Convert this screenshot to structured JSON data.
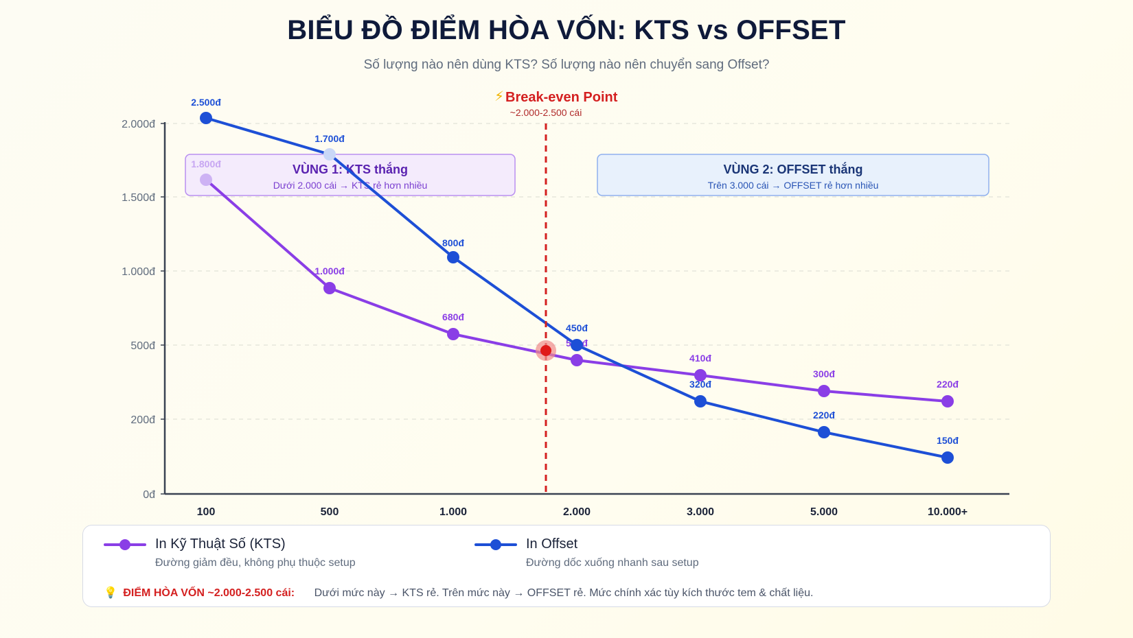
{
  "header": {
    "title": "BIỂU ĐỒ ĐIỂM HÒA VỐN: KTS vs OFFSET",
    "subtitle": "Số lượng nào nên dùng KTS? Số lượng nào nên chuyển sang Offset?"
  },
  "chart_data": {
    "type": "line",
    "categories": [
      "100",
      "500",
      "1.000",
      "2.000",
      "3.000",
      "5.000",
      "10.000+"
    ],
    "y_ticks": [
      "0đ",
      "200đ",
      "500đ",
      "1.000đ",
      "1.500đ",
      "2.000đ"
    ],
    "grid": true,
    "series": [
      {
        "name": "In Kỹ Thuật Số (KTS)",
        "color": "#8a3ee6",
        "labels": [
          "1.800đ",
          "1.000đ",
          "680đ",
          "500đ",
          "410đ",
          "300đ",
          "220đ"
        ]
      },
      {
        "name": "In Offset",
        "color": "#1d4fd6",
        "labels": [
          "2.500đ",
          "1.700đ",
          "800đ",
          "450đ",
          "320đ",
          "220đ",
          "150đ"
        ]
      }
    ],
    "break_even": {
      "label": "Break-even Point",
      "icon": "⚡",
      "sublabel": "~2.000-2.500 cái",
      "color": "#d42020"
    },
    "zones": [
      {
        "title": "VÙNG 1: KTS thắng",
        "desc": "Dưới 2.000 cái → KTS rẻ hơn nhiều"
      },
      {
        "title": "VÙNG 2: OFFSET thắng",
        "desc": "Trên 3.000 cái → OFFSET rẻ hơn nhiều"
      }
    ]
  },
  "legend": {
    "kts": {
      "name": "In Kỹ Thuật Số (KTS)",
      "desc": "Đường giảm đều, không phụ thuộc setup",
      "color": "#8a3ee6"
    },
    "offset": {
      "name": "In Offset",
      "desc": "Đường dốc xuống nhanh sau setup",
      "color": "#1d4fd6"
    },
    "note": {
      "icon": "💡",
      "label": "ĐIỂM HÒA VỐN ~2.000-2.500 cái:",
      "text": "Dưới mức này → KTS rẻ. Trên mức này → OFFSET rẻ. Mức chính xác tùy kích thước tem & chất liệu."
    }
  }
}
